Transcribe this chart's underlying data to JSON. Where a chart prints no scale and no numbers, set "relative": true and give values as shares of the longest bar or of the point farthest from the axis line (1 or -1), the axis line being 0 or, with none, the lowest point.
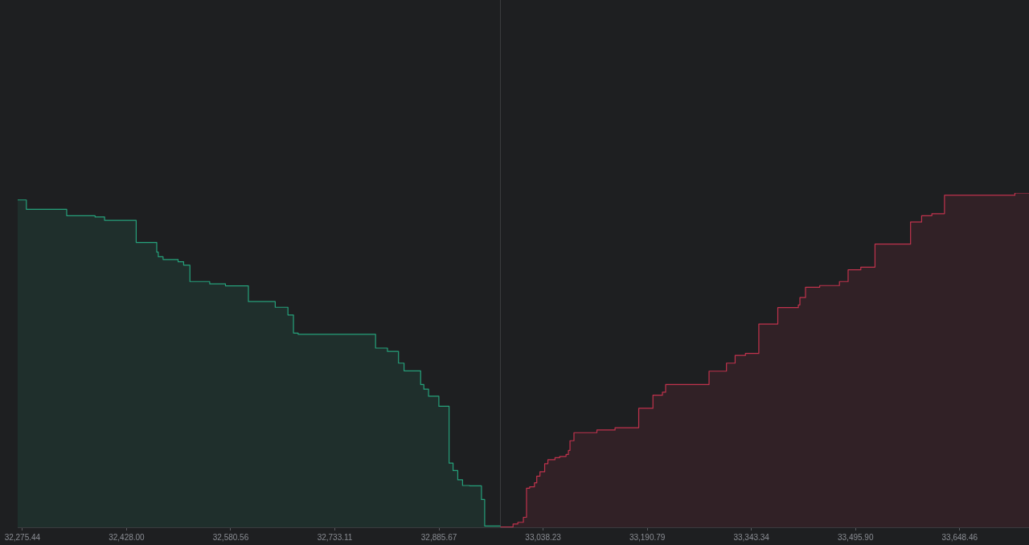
{
  "chart_data": {
    "type": "area",
    "relative": true,
    "legend": false,
    "grid": false,
    "tick_labels": "x",
    "xlim": [
      32268.5,
      33750.0
    ],
    "xticks": [
      {
        "value": 32275.44,
        "label": "32,275.44"
      },
      {
        "value": 32428.0,
        "label": "32,428.00"
      },
      {
        "value": 32580.56,
        "label": "32,580.56"
      },
      {
        "value": 32733.11,
        "label": "32,733.11"
      },
      {
        "value": 32885.67,
        "label": "32,885.67"
      },
      {
        "value": 33038.23,
        "label": "33,038.23"
      },
      {
        "value": 33190.79,
        "label": "33,190.79"
      },
      {
        "value": 33343.34,
        "label": "33,343.34"
      },
      {
        "value": 33495.9,
        "label": "33,495.90"
      },
      {
        "value": 33648.46,
        "label": "33,648.46"
      }
    ],
    "ref_lines": [
      {
        "axis": "x",
        "value": 32975.7,
        "color": "#3a3b3e"
      }
    ],
    "series": [
      {
        "color": "#26a17b",
        "x": [
          32268.5,
          32281.2,
          32281.2,
          32340.3,
          32340.3,
          32381.9,
          32381.9,
          32395.8,
          32395.8,
          32442.1,
          32442.1,
          32472.2,
          32472.2,
          32474.5,
          32474.5,
          32481.5,
          32481.5,
          32503.5,
          32503.5,
          32511.6,
          32511.6,
          32520.8,
          32520.8,
          32549.8,
          32549.8,
          32572.9,
          32572.9,
          32606.5,
          32606.5,
          32645.8,
          32645.8,
          32664.4,
          32664.4,
          32672.5,
          32672.5,
          32679.4,
          32679.4,
          32792.8,
          32792.8,
          32810.2,
          32810.2,
          32826.4,
          32826.4,
          32834.5,
          32834.5,
          32858.8,
          32858.8,
          32863.5,
          32863.5,
          32870.4,
          32870.4,
          32885.5,
          32885.5,
          32900.5,
          32900.5,
          32906.3,
          32906.3,
          32913.2,
          32913.2,
          32920.2,
          32920.2,
          32930.6,
          32930.6,
          32947.9,
          32947.9,
          32952.6,
          32952.6,
          32975.7
        ],
        "values": [
          0.979,
          0.979,
          0.951,
          0.951,
          0.932,
          0.932,
          0.928,
          0.928,
          0.918,
          0.918,
          0.852,
          0.852,
          0.823,
          0.823,
          0.809,
          0.809,
          0.801,
          0.801,
          0.794,
          0.794,
          0.784,
          0.784,
          0.735,
          0.735,
          0.728,
          0.728,
          0.722,
          0.722,
          0.675,
          0.675,
          0.658,
          0.658,
          0.635,
          0.635,
          0.581,
          0.581,
          0.577,
          0.577,
          0.536,
          0.536,
          0.526,
          0.526,
          0.491,
          0.491,
          0.468,
          0.468,
          0.427,
          0.427,
          0.413,
          0.413,
          0.392,
          0.392,
          0.362,
          0.362,
          0.192,
          0.192,
          0.17,
          0.17,
          0.142,
          0.142,
          0.125,
          0.125,
          0.124,
          0.124,
          0.083,
          0.083,
          0.004,
          0.004
        ]
      },
      {
        "color": "#c0334d",
        "x": [
          32975.7,
          32994.2,
          32994.2,
          33001.2,
          33001.2,
          33009.3,
          33009.3,
          33013.9,
          33013.9,
          33018.5,
          33018.5,
          33025.5,
          33025.5,
          33028.9,
          33028.9,
          33033.6,
          33033.6,
          33040.5,
          33040.5,
          33045.2,
          33045.2,
          33055.6,
          33055.6,
          33062.5,
          33062.5,
          33071.8,
          33071.8,
          33075.3,
          33075.3,
          33077.6,
          33077.6,
          33083.4,
          33083.4,
          33117.0,
          33117.0,
          33143.6,
          33143.6,
          33178.3,
          33178.3,
          33199.1,
          33199.1,
          33213.0,
          33213.0,
          33217.7,
          33217.7,
          33281.3,
          33281.3,
          33306.8,
          33306.8,
          33319.5,
          33319.5,
          33334.6,
          33334.6,
          33354.2,
          33354.2,
          33382.0,
          33382.0,
          33412.1,
          33412.1,
          33414.4,
          33414.4,
          33422.6,
          33422.6,
          33443.4,
          33443.4,
          33472.3,
          33472.3,
          33485.0,
          33485.0,
          33503.6,
          33503.6,
          33524.4,
          33524.4,
          33576.5,
          33576.5,
          33592.7,
          33592.7,
          33607.7,
          33607.7,
          33626.2,
          33626.2,
          33729.3,
          33729.3,
          33750.0
        ],
        "values": [
          0.001,
          0.001,
          0.01,
          0.01,
          0.015,
          0.015,
          0.03,
          0.03,
          0.117,
          0.117,
          0.121,
          0.121,
          0.133,
          0.133,
          0.153,
          0.153,
          0.166,
          0.166,
          0.19,
          0.19,
          0.202,
          0.202,
          0.208,
          0.208,
          0.212,
          0.212,
          0.218,
          0.218,
          0.23,
          0.23,
          0.259,
          0.259,
          0.283,
          0.283,
          0.291,
          0.291,
          0.298,
          0.298,
          0.356,
          0.356,
          0.395,
          0.395,
          0.404,
          0.404,
          0.427,
          0.427,
          0.467,
          0.467,
          0.491,
          0.491,
          0.514,
          0.514,
          0.52,
          0.52,
          0.608,
          0.608,
          0.657,
          0.657,
          0.665,
          0.665,
          0.687,
          0.687,
          0.718,
          0.718,
          0.723,
          0.723,
          0.735,
          0.735,
          0.77,
          0.77,
          0.778,
          0.778,
          0.847,
          0.847,
          0.913,
          0.913,
          0.932,
          0.932,
          0.938,
          0.938,
          0.993,
          0.993,
          1.0,
          1.0
        ]
      }
    ]
  }
}
